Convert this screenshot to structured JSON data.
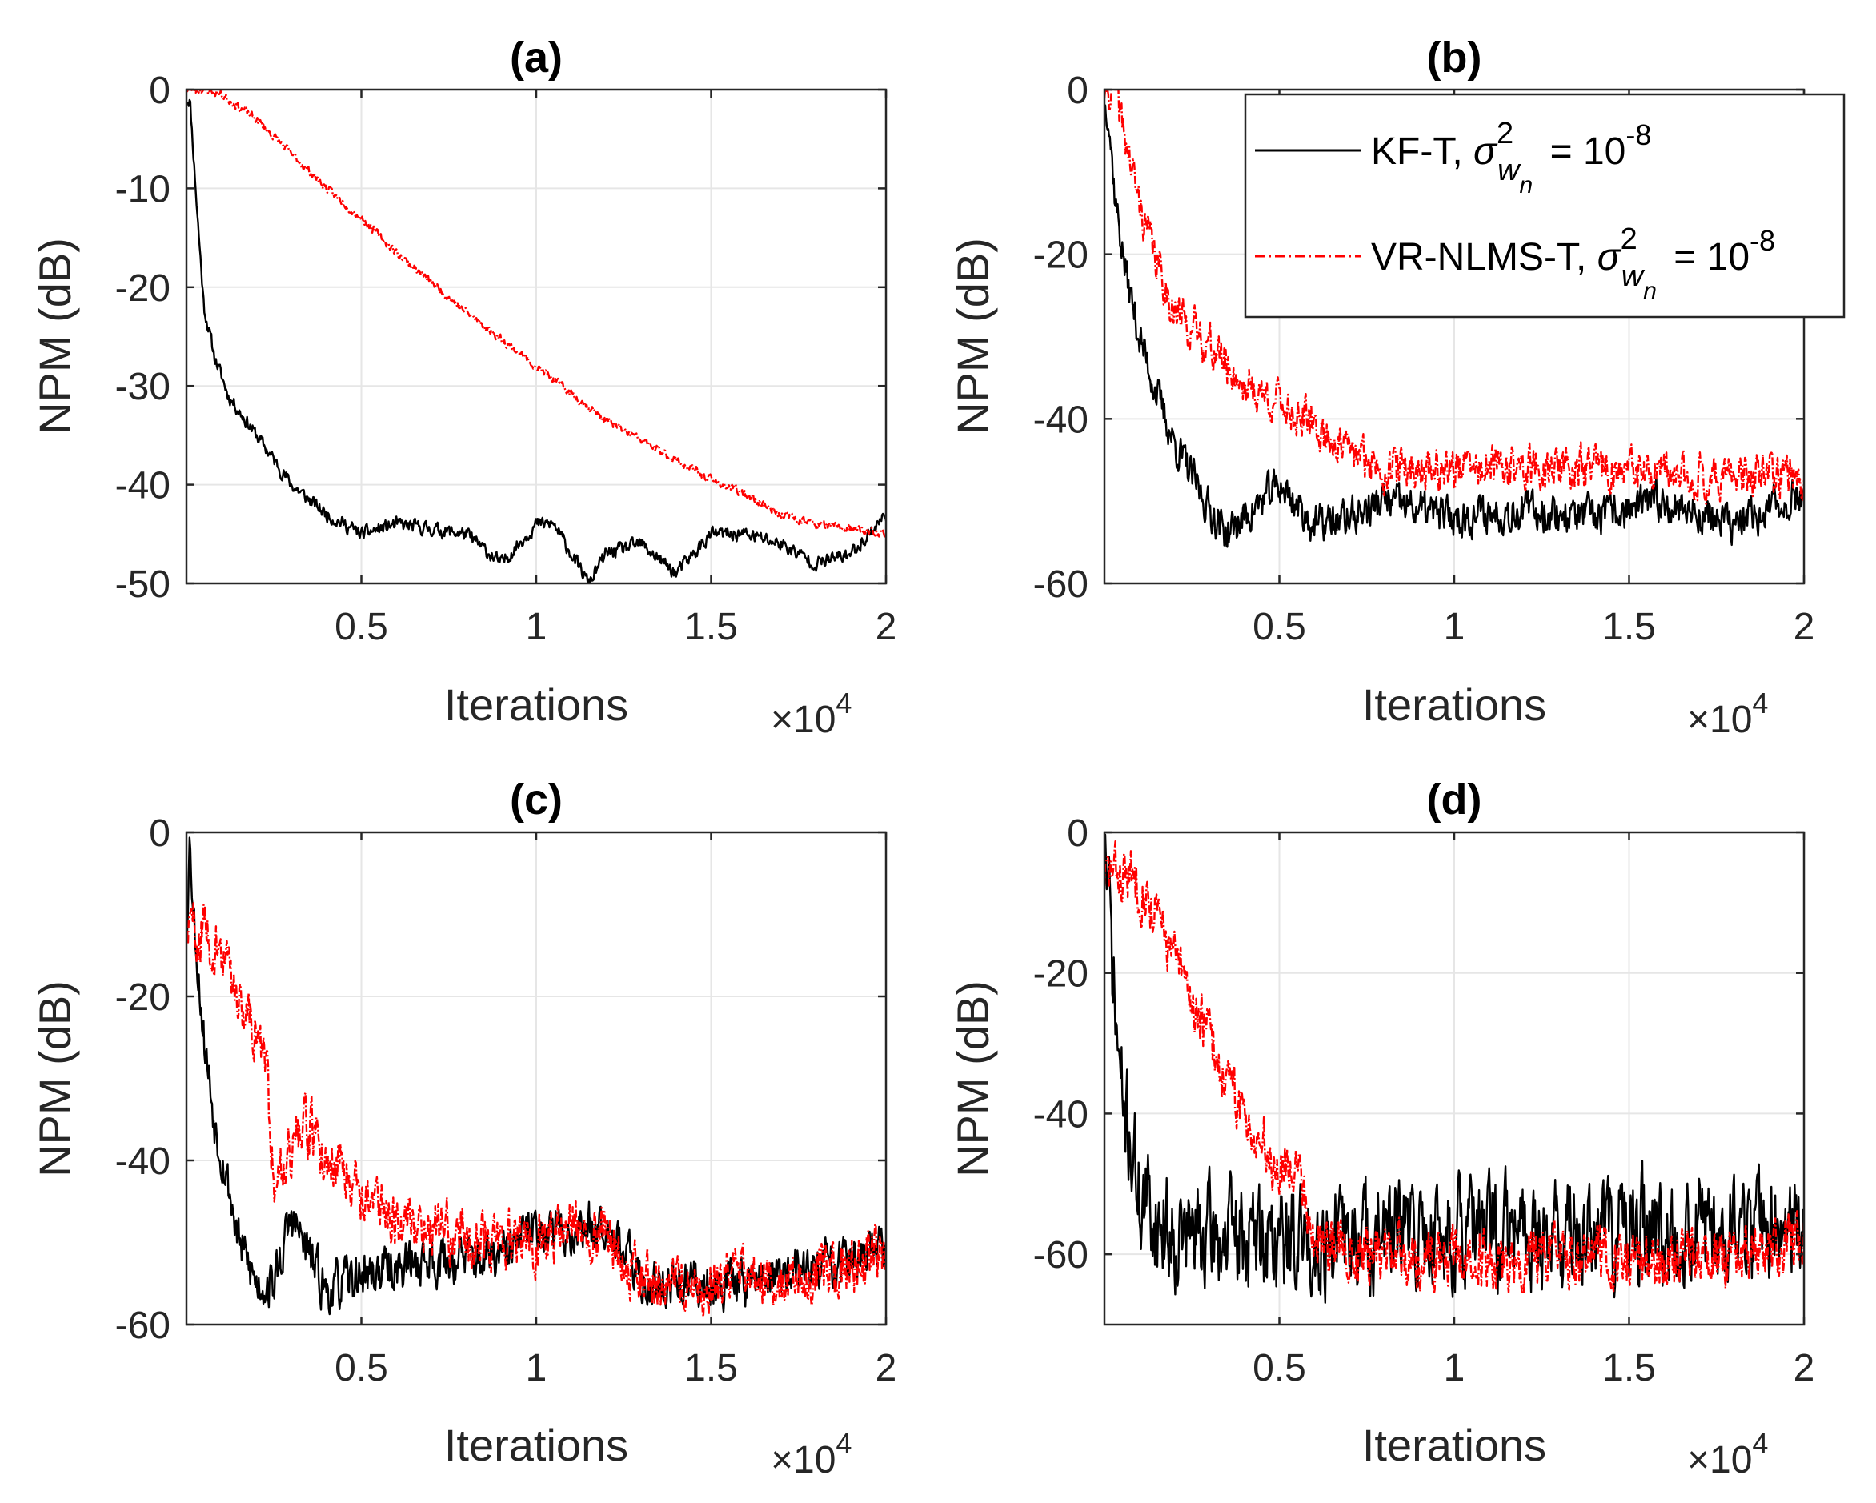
{
  "chart_data": [
    {
      "type": "line",
      "title": "(a)",
      "xlabel": "Iterations",
      "ylabel": "NPM (dB)",
      "x_multiplier": "×10",
      "x_multiplier_exp": "4",
      "xlim": [
        0,
        2
      ],
      "ylim": [
        -50,
        0
      ],
      "xticks": [
        0.5,
        1,
        1.5,
        2
      ],
      "xtick_labels": [
        "0.5",
        "1",
        "1.5",
        "2"
      ],
      "yticks": [
        0,
        -10,
        -20,
        -30,
        -40,
        -50
      ],
      "ytick_labels": [
        "0",
        "-10",
        "-20",
        "-30",
        "-40",
        "-50"
      ],
      "grid": true,
      "series": [
        {
          "name": "KF-T",
          "color": "#000000",
          "noise": 0.6,
          "seed": 11,
          "x": [
            0,
            0.01,
            0.03,
            0.05,
            0.08,
            0.12,
            0.2,
            0.3,
            0.4,
            0.5,
            0.6,
            0.8,
            0.9,
            1.0,
            1.05,
            1.1,
            1.15,
            1.2,
            1.3,
            1.4,
            1.5,
            1.6,
            1.7,
            1.8,
            1.9,
            2.0
          ],
          "y": [
            -1,
            -1,
            -12,
            -22,
            -27,
            -31,
            -35,
            -40,
            -43,
            -45,
            -44,
            -45,
            -48,
            -44,
            -44,
            -47,
            -50,
            -47,
            -46,
            -49,
            -45,
            -45,
            -46,
            -48,
            -47,
            -43
          ]
        },
        {
          "name": "VR-NLMS-T",
          "color": "#ff0000",
          "noise": 0.35,
          "seed": 23,
          "x": [
            0,
            0.05,
            0.1,
            0.2,
            0.3,
            0.4,
            0.5,
            0.6,
            0.8,
            1.0,
            1.2,
            1.4,
            1.5,
            1.6,
            1.7,
            1.8,
            1.9,
            2.0
          ],
          "y": [
            0,
            0,
            -0.5,
            -3,
            -6.5,
            -10,
            -13,
            -16.5,
            -22.5,
            -28,
            -33.5,
            -37.5,
            -39.5,
            -41,
            -43,
            -44,
            -44.5,
            -45
          ]
        }
      ]
    },
    {
      "type": "line",
      "title": "(b)",
      "xlabel": "Iterations",
      "ylabel": "NPM (dB)",
      "x_multiplier": "×10",
      "x_multiplier_exp": "4",
      "xlim": [
        0,
        2
      ],
      "ylim": [
        -60,
        0
      ],
      "xticks": [
        0.5,
        1,
        1.5,
        2
      ],
      "xtick_labels": [
        "0.5",
        "1",
        "1.5",
        "2"
      ],
      "yticks": [
        0,
        -20,
        -40,
        -60
      ],
      "ytick_labels": [
        "0",
        "-20",
        "-40",
        "-60"
      ],
      "grid": true,
      "legend": {
        "placement": "top-right",
        "entries": [
          {
            "label": "KF-T, ",
            "sigma_sup": "2",
            "sigma_sub": "w",
            "sigma_subsub": "n",
            "value_text": " = 10",
            "value_exp": "-8",
            "color": "#000000",
            "dash": "none"
          },
          {
            "label": "VR-NLMS-T, ",
            "sigma_sup": "2",
            "sigma_sub": "w",
            "sigma_subsub": "n",
            "value_text": " = 10",
            "value_exp": "-8",
            "color": "#ff0000",
            "dash": "12 5 3 5"
          }
        ],
        "sigma_symbol": "σ"
      },
      "series": [
        {
          "name": "KF-T",
          "color": "#000000",
          "noise": 2.0,
          "seed": 37,
          "x": [
            0,
            0.01,
            0.03,
            0.06,
            0.1,
            0.15,
            0.2,
            0.25,
            0.3,
            0.35,
            0.4,
            0.5,
            0.6,
            0.7,
            0.8,
            1.0,
            1.2,
            1.4,
            1.6,
            1.8,
            1.9,
            2.0
          ],
          "y": [
            -2,
            -2,
            -13,
            -22,
            -30,
            -37,
            -43,
            -47,
            -51,
            -54,
            -52,
            -48,
            -53,
            -52,
            -50,
            -52,
            -51,
            -52,
            -50,
            -53,
            -51,
            -49
          ]
        },
        {
          "name": "VR-NLMS-T",
          "color": "#ff0000",
          "noise": 2.2,
          "seed": 41,
          "x": [
            0,
            0.03,
            0.06,
            0.1,
            0.15,
            0.2,
            0.3,
            0.4,
            0.5,
            0.6,
            0.7,
            0.8,
            1.0,
            1.2,
            1.4,
            1.6,
            1.8,
            2.0
          ],
          "y": [
            0,
            0,
            -6,
            -14,
            -21,
            -27,
            -31,
            -36,
            -38,
            -41,
            -44,
            -46,
            -46,
            -46,
            -46,
            -47,
            -47,
            -47
          ]
        }
      ]
    },
    {
      "type": "line",
      "title": "(c)",
      "xlabel": "Iterations",
      "ylabel": "NPM (dB)",
      "x_multiplier": "×10",
      "x_multiplier_exp": "4",
      "xlim": [
        0,
        2
      ],
      "ylim": [
        -60,
        0
      ],
      "xticks": [
        0.5,
        1,
        1.5,
        2
      ],
      "xtick_labels": [
        "0.5",
        "1",
        "1.5",
        "2"
      ],
      "yticks": [
        0,
        -20,
        -40,
        -60
      ],
      "ytick_labels": [
        "0",
        "-20",
        "-40",
        "-60"
      ],
      "grid": true,
      "series": [
        {
          "name": "KF-T",
          "color": "#000000",
          "noise": 2.5,
          "seed": 53,
          "x": [
            0,
            0.01,
            0.02,
            0.05,
            0.08,
            0.12,
            0.15,
            0.2,
            0.25,
            0.3,
            0.4,
            0.5,
            0.7,
            0.9,
            1.0,
            1.1,
            1.2,
            1.3,
            1.5,
            1.7,
            1.9,
            2.0
          ],
          "y": [
            -12,
            0,
            -10,
            -25,
            -35,
            -43,
            -50,
            -55,
            -55,
            -47,
            -56,
            -54,
            -52,
            -52,
            -48,
            -49,
            -47,
            -55,
            -55,
            -54,
            -52,
            -51
          ]
        },
        {
          "name": "VR-NLMS-T",
          "color": "#ff0000",
          "noise": 3.0,
          "seed": 59,
          "x": [
            0,
            0.05,
            0.1,
            0.15,
            0.2,
            0.23,
            0.25,
            0.3,
            0.35,
            0.4,
            0.45,
            0.5,
            0.6,
            0.7,
            0.8,
            1.0,
            1.1,
            1.2,
            1.3,
            1.5,
            1.7,
            1.9,
            2.0
          ],
          "y": [
            -12,
            -12,
            -15,
            -20,
            -24,
            -30,
            -42,
            -38,
            -36,
            -40,
            -40,
            -44,
            -47,
            -48,
            -49,
            -50,
            -48,
            -48,
            -55,
            -55,
            -54,
            -53,
            -51
          ]
        }
      ]
    },
    {
      "type": "line",
      "title": "(d)",
      "xlabel": "Iterations",
      "ylabel": "NPM (dB)",
      "x_multiplier": "×10",
      "x_multiplier_exp": "4",
      "xlim": [
        0,
        2
      ],
      "ylim": [
        -70,
        0
      ],
      "xticks": [
        0.5,
        1,
        1.5,
        2
      ],
      "xtick_labels": [
        "0.5",
        "1",
        "1.5",
        "2"
      ],
      "yticks": [
        0,
        -20,
        -40,
        -60
      ],
      "ytick_labels": [
        "0",
        "-20",
        "-40",
        "-60"
      ],
      "grid": true,
      "series": [
        {
          "name": "KF-T",
          "color": "#000000",
          "noise": 6.5,
          "seed": 71,
          "x": [
            0,
            0.01,
            0.03,
            0.05,
            0.08,
            0.1,
            0.15,
            0.2,
            0.5,
            1.0,
            1.5,
            2.0
          ],
          "y": [
            0,
            -8,
            -25,
            -38,
            -45,
            -52,
            -55,
            -57,
            -58,
            -57,
            -57,
            -56
          ]
        },
        {
          "name": "VR-NLMS-T",
          "color": "#ff0000",
          "noise": 3.5,
          "seed": 83,
          "x": [
            0,
            0.05,
            0.1,
            0.15,
            0.2,
            0.25,
            0.3,
            0.35,
            0.4,
            0.45,
            0.5,
            0.55,
            0.6,
            0.8,
            1.0,
            1.2,
            1.4,
            1.6,
            1.8,
            2.0
          ],
          "y": [
            -6,
            -6,
            -7,
            -12,
            -18,
            -24,
            -29,
            -36,
            -40,
            -44,
            -48,
            -46,
            -58,
            -60,
            -61,
            -61,
            -60,
            -61,
            -61,
            -58
          ]
        }
      ]
    }
  ]
}
